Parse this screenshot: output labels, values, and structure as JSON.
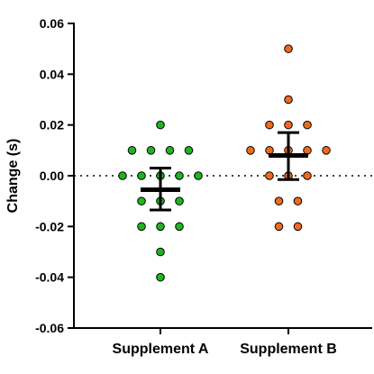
{
  "chart_data": {
    "type": "scatter",
    "ylabel": "Change (s)",
    "ylim": [
      -0.06,
      0.06
    ],
    "y_ticks": [
      "0.06",
      "0.04",
      "0.02",
      "0.00",
      "-0.02",
      "-0.04",
      "-0.06"
    ],
    "y_tick_values": [
      0.06,
      0.04,
      0.02,
      0.0,
      -0.02,
      -0.04,
      -0.06
    ],
    "categories": [
      "Supplement A",
      "Supplement B"
    ],
    "reference_line": 0.0,
    "grid": false,
    "series": [
      {
        "category": "Supplement A",
        "color": "#1fb51f",
        "values": [
          0.02,
          0.01,
          0.01,
          0.01,
          0.01,
          0.0,
          0.0,
          0.0,
          0.0,
          0.0,
          -0.01,
          -0.01,
          -0.01,
          -0.02,
          -0.02,
          -0.02,
          -0.03,
          -0.04
        ],
        "mean": -0.0055,
        "error_upper": 0.003,
        "error_lower": -0.0135
      },
      {
        "category": "Supplement B",
        "color": "#f06a1e",
        "values": [
          0.05,
          0.03,
          0.02,
          0.02,
          0.02,
          0.01,
          0.01,
          0.01,
          0.01,
          0.01,
          0.0,
          0.0,
          0.0,
          -0.01,
          -0.01,
          -0.02,
          -0.02
        ],
        "mean": 0.008,
        "error_upper": 0.017,
        "error_lower": -0.0015
      }
    ]
  }
}
